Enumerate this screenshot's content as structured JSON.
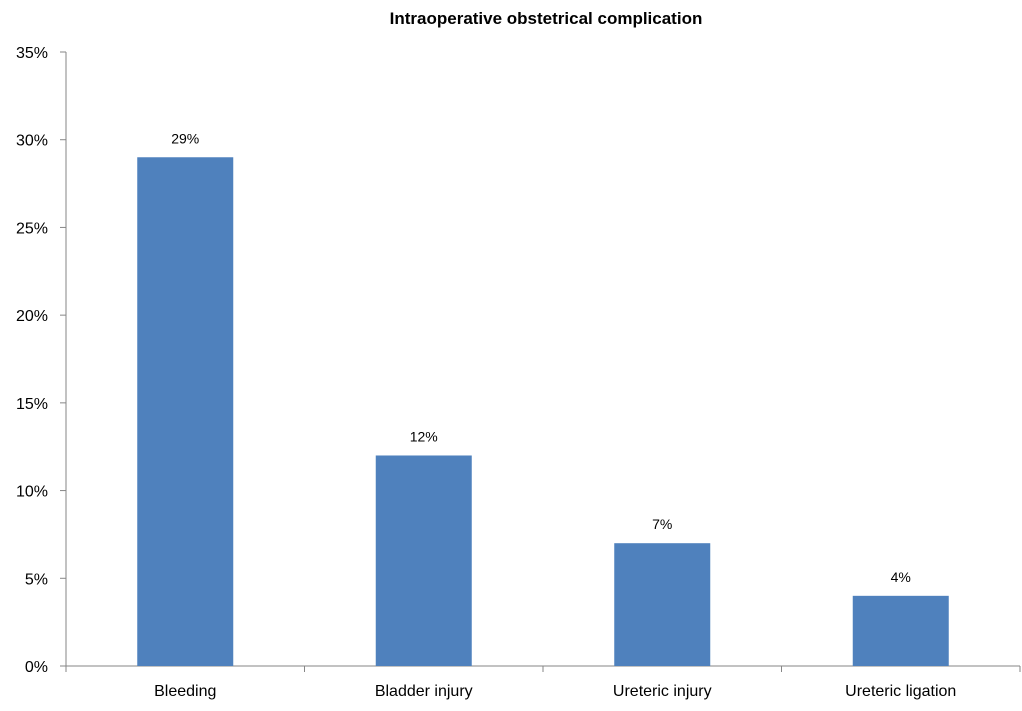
{
  "chart_data": {
    "type": "bar",
    "title": "Intraoperative obstetrical complication",
    "categories": [
      "Bleeding",
      "Bladder injury",
      "Ureteric injury",
      "Ureteric ligation"
    ],
    "values": [
      29,
      12,
      7,
      4
    ],
    "data_labels": [
      "29%",
      "12%",
      "7%",
      "4%"
    ],
    "y_ticks": [
      "0%",
      "5%",
      "10%",
      "15%",
      "20%",
      "25%",
      "30%",
      "35%"
    ],
    "ylim": [
      0,
      35
    ],
    "grid": false,
    "legend": "none",
    "bar_color": "#4f81bd"
  }
}
